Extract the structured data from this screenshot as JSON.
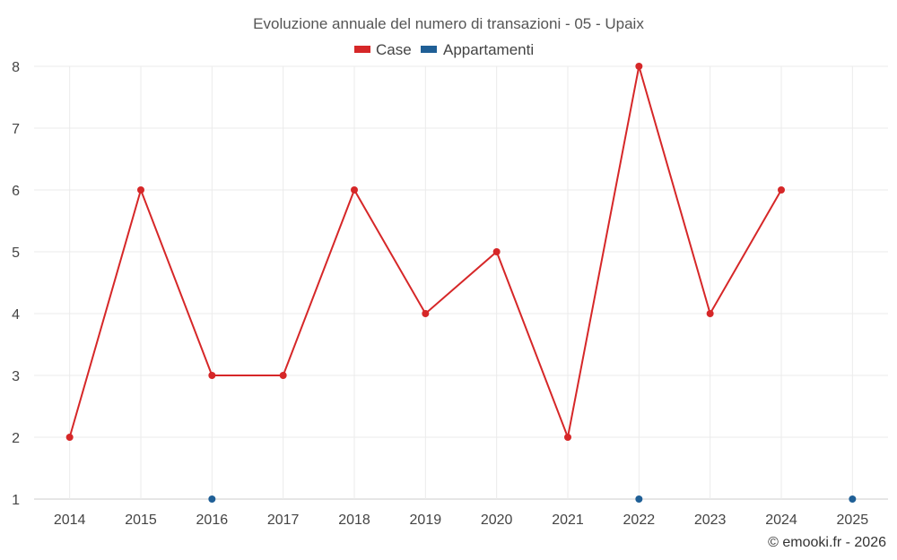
{
  "chart_data": {
    "type": "line",
    "title": "Evoluzione annuale del numero di transazioni - 05 - Upaix",
    "categories": [
      "2014",
      "2015",
      "2016",
      "2017",
      "2018",
      "2019",
      "2020",
      "2021",
      "2022",
      "2023",
      "2024",
      "2025"
    ],
    "series": [
      {
        "name": "Case",
        "color": "#d62728",
        "values": [
          2,
          6,
          3,
          3,
          6,
          4,
          5,
          2,
          8,
          4,
          6,
          null
        ]
      },
      {
        "name": "Appartamenti",
        "color": "#1f5f96",
        "values": [
          null,
          null,
          1,
          null,
          null,
          null,
          null,
          null,
          1,
          null,
          null,
          1
        ]
      }
    ],
    "ylim": [
      1,
      8
    ],
    "yticks": [
      1,
      2,
      3,
      4,
      5,
      6,
      7,
      8
    ],
    "xlabel": "",
    "ylabel": "",
    "grid": true,
    "legend_position": "top-center"
  },
  "credit": "© emooki.fr - 2026"
}
